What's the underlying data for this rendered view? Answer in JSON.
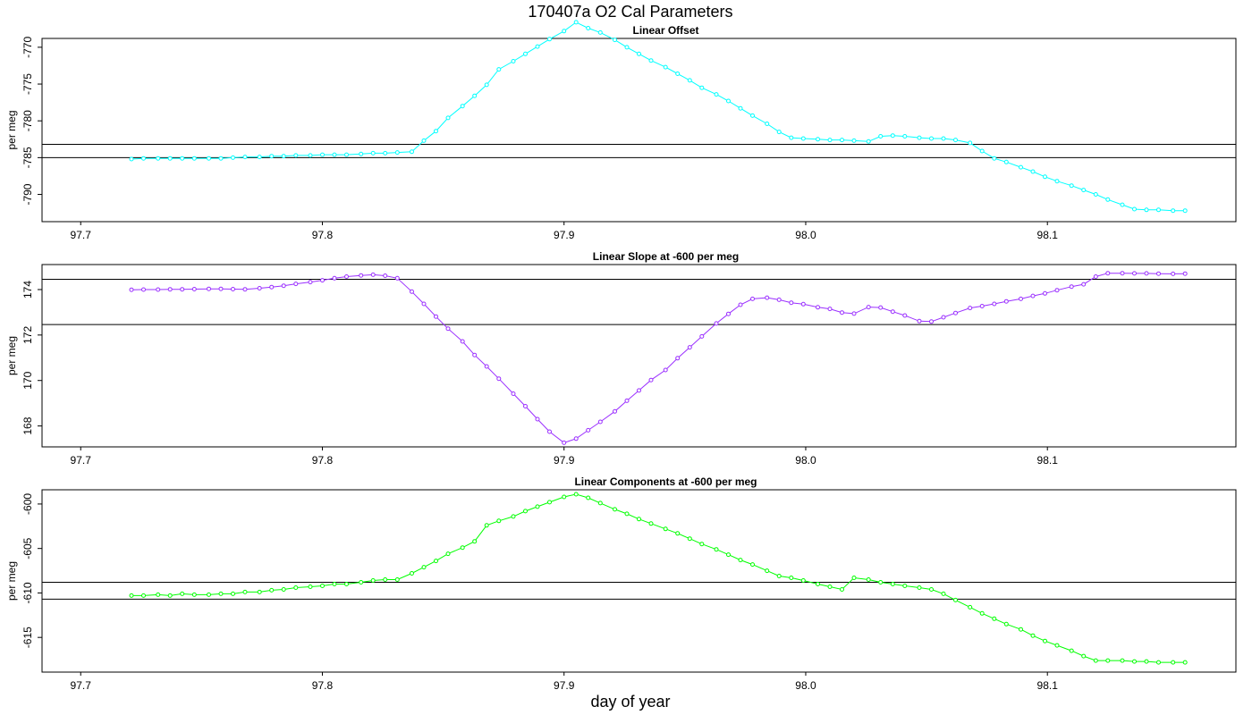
{
  "title": "170407a   O2 Cal Parameters",
  "xlabel": "day of year",
  "chart_data": [
    {
      "type": "line",
      "title": "Linear Offset",
      "ylabel": "per meg",
      "color": "#00FFFF",
      "xlim": [
        97.684,
        98.178
      ],
      "ylim": [
        -793.7,
        -768.8
      ],
      "xticks": [
        "97.7",
        "97.8",
        "97.9",
        "98.0",
        "98.1"
      ],
      "yticks": [
        "-790",
        "-785",
        "-780",
        "-775",
        "-770"
      ],
      "hlines": [
        -783.2,
        -785.0
      ],
      "x": [
        97.721,
        97.726,
        97.732,
        97.737,
        97.742,
        97.747,
        97.753,
        97.758,
        97.763,
        97.768,
        97.774,
        97.779,
        97.784,
        97.789,
        97.795,
        97.8,
        97.805,
        97.81,
        97.816,
        97.821,
        97.826,
        97.831,
        97.837,
        97.842,
        97.847,
        97.852,
        97.858,
        97.863,
        97.868,
        97.873,
        97.879,
        97.884,
        97.889,
        97.894,
        97.9,
        97.905,
        97.91,
        97.915,
        97.921,
        97.926,
        97.931,
        97.936,
        97.942,
        97.947,
        97.952,
        97.957,
        97.963,
        97.968,
        97.973,
        97.978,
        97.984,
        97.989,
        97.994,
        97.999,
        98.005,
        98.01,
        98.015,
        98.02,
        98.026,
        98.031,
        98.036,
        98.041,
        98.047,
        98.052,
        98.057,
        98.062,
        98.068,
        98.073,
        98.078,
        98.083,
        98.089,
        98.094,
        98.099,
        98.104,
        98.11,
        98.115,
        98.12,
        98.125,
        98.131,
        98.136,
        98.141,
        98.146,
        98.152,
        98.157
      ],
      "y": [
        -785.2,
        -785.1,
        -785.1,
        -785.1,
        -785.1,
        -785.1,
        -785.1,
        -785.1,
        -785.0,
        -784.9,
        -784.9,
        -784.8,
        -784.8,
        -784.7,
        -784.7,
        -784.6,
        -784.6,
        -784.6,
        -784.5,
        -784.4,
        -784.4,
        -784.3,
        -784.2,
        -782.7,
        -781.4,
        -779.6,
        -778.0,
        -776.6,
        -775.1,
        -773.0,
        -771.9,
        -770.9,
        -769.9,
        -768.9,
        -767.8,
        -766.6,
        -767.4,
        -768.0,
        -769.0,
        -770.0,
        -770.9,
        -771.8,
        -772.7,
        -773.6,
        -774.5,
        -775.5,
        -776.4,
        -777.3,
        -778.3,
        -779.3,
        -780.4,
        -781.5,
        -782.3,
        -782.4,
        -782.5,
        -782.6,
        -782.6,
        -782.7,
        -782.8,
        -782.1,
        -782.0,
        -782.1,
        -782.3,
        -782.4,
        -782.4,
        -782.6,
        -783.0,
        -784.1,
        -785.1,
        -785.6,
        -786.3,
        -786.9,
        -787.6,
        -788.2,
        -788.8,
        -789.4,
        -790.0,
        -790.7,
        -791.4,
        -792.0,
        -792.1,
        -792.1,
        -792.2,
        -792.2
      ]
    },
    {
      "type": "line",
      "title": "Linear Slope at -600 per meg",
      "ylabel": "per meg",
      "color": "#9B30FF",
      "xlim": [
        97.684,
        98.178
      ],
      "ylim": [
        167.08,
        175.1
      ],
      "xticks": [
        "97.7",
        "97.8",
        "97.9",
        "98.0",
        "98.1"
      ],
      "yticks": [
        "168",
        "170",
        "172",
        "174"
      ],
      "hlines": [
        174.45,
        172.46
      ],
      "x": [
        97.721,
        97.726,
        97.732,
        97.737,
        97.742,
        97.747,
        97.753,
        97.758,
        97.763,
        97.768,
        97.774,
        97.779,
        97.784,
        97.789,
        97.795,
        97.8,
        97.805,
        97.81,
        97.816,
        97.821,
        97.826,
        97.831,
        97.837,
        97.842,
        97.847,
        97.852,
        97.858,
        97.863,
        97.868,
        97.873,
        97.879,
        97.884,
        97.889,
        97.894,
        97.9,
        97.905,
        97.91,
        97.915,
        97.921,
        97.926,
        97.931,
        97.936,
        97.942,
        97.947,
        97.952,
        97.957,
        97.963,
        97.968,
        97.973,
        97.978,
        97.984,
        97.989,
        97.994,
        97.999,
        98.005,
        98.01,
        98.015,
        98.02,
        98.026,
        98.031,
        98.036,
        98.041,
        98.047,
        98.052,
        98.057,
        98.062,
        98.068,
        98.073,
        98.078,
        98.083,
        98.089,
        98.094,
        98.099,
        98.104,
        98.11,
        98.115,
        98.12,
        98.125,
        98.131,
        98.136,
        98.141,
        98.146,
        98.152,
        98.157
      ],
      "y": [
        173.99,
        174.0,
        174.0,
        174.01,
        174.01,
        174.02,
        174.03,
        174.03,
        174.02,
        174.01,
        174.06,
        174.11,
        174.17,
        174.25,
        174.33,
        174.41,
        174.5,
        174.57,
        174.62,
        174.65,
        174.61,
        174.5,
        173.91,
        173.37,
        172.81,
        172.28,
        171.72,
        171.12,
        170.62,
        170.08,
        169.42,
        168.87,
        168.3,
        167.75,
        167.26,
        167.44,
        167.81,
        168.18,
        168.64,
        169.11,
        169.56,
        170.02,
        170.46,
        170.98,
        171.46,
        171.94,
        172.51,
        172.93,
        173.33,
        173.59,
        173.64,
        173.55,
        173.42,
        173.36,
        173.22,
        173.15,
        172.99,
        172.94,
        173.23,
        173.21,
        173.03,
        172.86,
        172.61,
        172.59,
        172.78,
        172.97,
        173.19,
        173.27,
        173.37,
        173.48,
        173.59,
        173.72,
        173.83,
        173.97,
        174.13,
        174.23,
        174.57,
        174.72,
        174.72,
        174.71,
        174.71,
        174.7,
        174.69,
        174.7
      ]
    },
    {
      "type": "line",
      "title": "Linear Components at -600 per meg",
      "ylabel": "per meg",
      "color": "#00FF00",
      "xlim": [
        97.684,
        98.178
      ],
      "ylim": [
        -618.9,
        -598.4
      ],
      "xticks": [
        "97.7",
        "97.8",
        "97.9",
        "98.0",
        "98.1"
      ],
      "yticks": [
        "-615",
        "-610",
        "-605",
        "-600"
      ],
      "hlines": [
        -608.8,
        -610.7
      ],
      "x": [
        97.721,
        97.726,
        97.732,
        97.737,
        97.742,
        97.747,
        97.753,
        97.758,
        97.763,
        97.768,
        97.774,
        97.779,
        97.784,
        97.789,
        97.795,
        97.8,
        97.805,
        97.81,
        97.816,
        97.821,
        97.826,
        97.831,
        97.837,
        97.842,
        97.847,
        97.852,
        97.858,
        97.863,
        97.868,
        97.873,
        97.879,
        97.884,
        97.889,
        97.894,
        97.9,
        97.905,
        97.91,
        97.915,
        97.921,
        97.926,
        97.931,
        97.936,
        97.942,
        97.947,
        97.952,
        97.957,
        97.963,
        97.968,
        97.973,
        97.978,
        97.984,
        97.989,
        97.994,
        97.999,
        98.005,
        98.01,
        98.015,
        98.02,
        98.026,
        98.031,
        98.036,
        98.041,
        98.047,
        98.052,
        98.057,
        98.062,
        98.068,
        98.073,
        98.078,
        98.083,
        98.089,
        98.094,
        98.099,
        98.104,
        98.11,
        98.115,
        98.12,
        98.125,
        98.131,
        98.136,
        98.141,
        98.146,
        98.152,
        98.157
      ],
      "y": [
        -610.3,
        -610.3,
        -610.2,
        -610.3,
        -610.1,
        -610.2,
        -610.2,
        -610.1,
        -610.1,
        -609.9,
        -609.9,
        -609.7,
        -609.6,
        -609.4,
        -609.3,
        -609.2,
        -609.0,
        -609.0,
        -608.8,
        -608.6,
        -608.5,
        -608.5,
        -607.8,
        -607.1,
        -606.4,
        -605.6,
        -604.9,
        -604.2,
        -602.4,
        -601.9,
        -601.4,
        -600.8,
        -600.3,
        -599.8,
        -599.2,
        -598.9,
        -599.3,
        -599.9,
        -600.6,
        -601.1,
        -601.7,
        -602.2,
        -602.8,
        -603.3,
        -603.9,
        -604.5,
        -605.1,
        -605.7,
        -606.3,
        -606.8,
        -607.5,
        -608.1,
        -608.3,
        -608.6,
        -609.0,
        -609.3,
        -609.6,
        -608.3,
        -608.5,
        -608.8,
        -609.0,
        -609.2,
        -609.4,
        -609.6,
        -610.1,
        -610.8,
        -611.6,
        -612.3,
        -612.9,
        -613.5,
        -614.1,
        -614.8,
        -615.4,
        -615.9,
        -616.5,
        -617.1,
        -617.6,
        -617.6,
        -617.6,
        -617.7,
        -617.7,
        -617.8,
        -617.8,
        -617.8
      ]
    }
  ]
}
